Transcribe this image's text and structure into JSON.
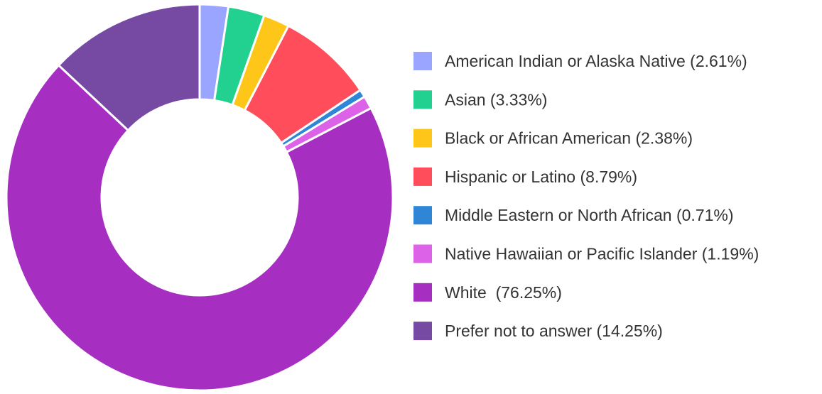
{
  "chart_data": {
    "type": "pie",
    "donut": true,
    "title": "",
    "legend_position": "right",
    "slices": [
      {
        "label": "American Indian or Alaska Native (2.61%)",
        "value": 2.61,
        "color": "#9aa5ff"
      },
      {
        "label": "Asian (3.33%)",
        "value": 3.33,
        "color": "#22d18f"
      },
      {
        "label": "Black or African American (2.38%)",
        "value": 2.38,
        "color": "#ffc61a"
      },
      {
        "label": "Hispanic or Latino (8.79%)",
        "value": 8.79,
        "color": "#ff4d5b"
      },
      {
        "label": "Middle Eastern or North African (0.71%)",
        "value": 0.71,
        "color": "#2f86d6"
      },
      {
        "label": "Native Hawaiian or Pacific Islander (1.19%)",
        "value": 1.19,
        "color": "#dc62e8"
      },
      {
        "label": "White  (76.25%)",
        "value": 76.25,
        "color": "#a62fc2"
      },
      {
        "label": "Prefer not to answer (14.25%)",
        "value": 14.25,
        "color": "#7649a3"
      }
    ]
  }
}
